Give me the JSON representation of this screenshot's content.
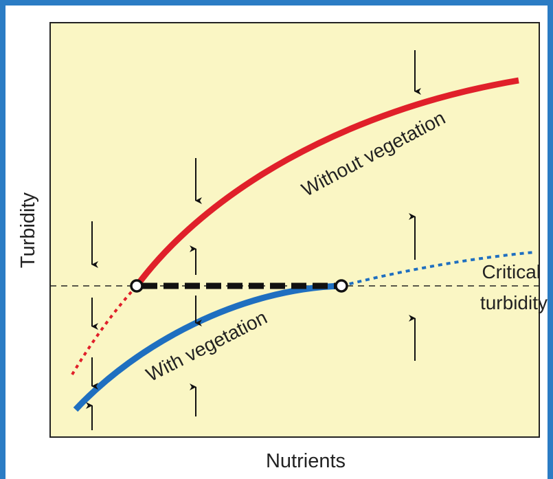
{
  "axes": {
    "y_label": "Turbidity",
    "x_label": "Nutrients"
  },
  "curves": {
    "without_vegetation": "Without vegetation",
    "with_vegetation": "With vegetation"
  },
  "threshold": {
    "line1": "Critical",
    "line2": "turbidity"
  }
}
